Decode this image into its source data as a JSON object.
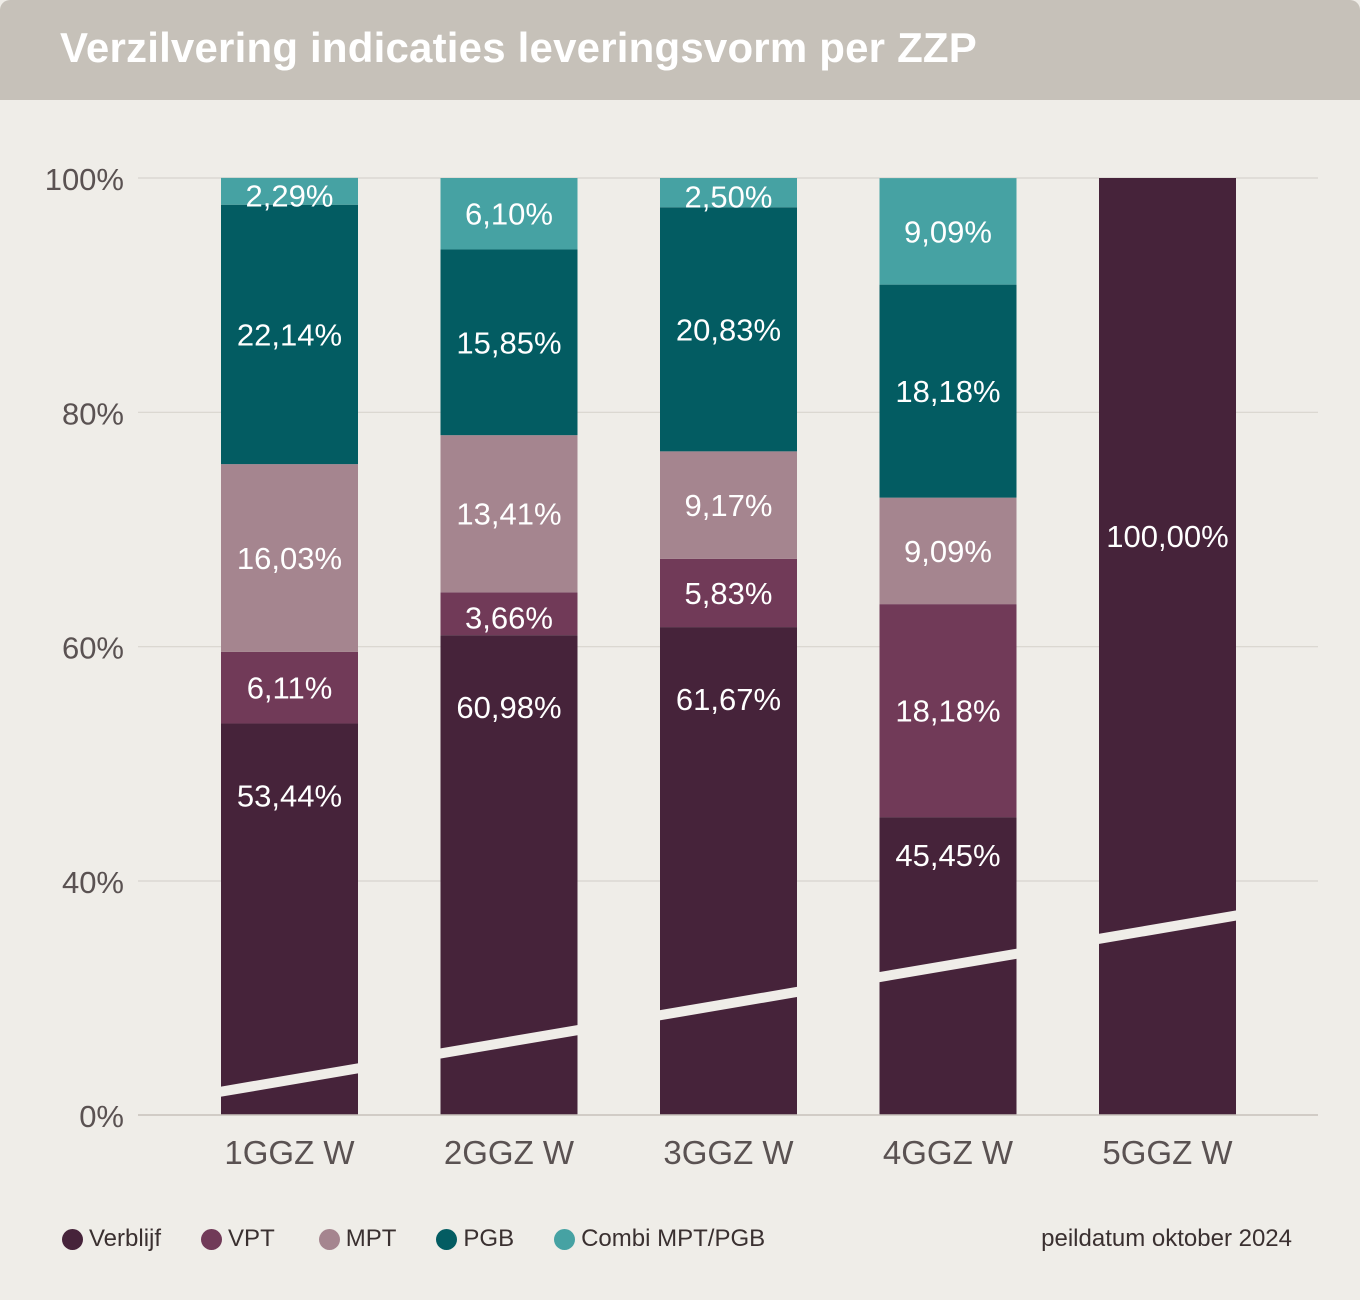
{
  "title": "Verzilvering indicaties leveringsvorm per ZZP",
  "date_note": "peildatum oktober 2024",
  "colors": {
    "Verblijf": "#46233a",
    "VPT": "#713a58",
    "MPT": "#a5858f",
    "PGB": "#035c62",
    "Combi MPT/PGB": "#46a2a3",
    "background": "#efede8",
    "header": "#c6c1b9"
  },
  "chart_data": {
    "type": "bar",
    "stacked": true,
    "title": "Verzilvering indicaties leveringsvorm per ZZP",
    "categories": [
      "1GGZ W",
      "2GGZ W",
      "3GGZ W",
      "4GGZ W",
      "5GGZ W"
    ],
    "yticks": [
      "0%",
      "40%",
      "60%",
      "80%",
      "100%"
    ],
    "ylim": [
      0,
      100
    ],
    "axis_break": true,
    "grid": true,
    "legend_position": "bottom-left",
    "series": [
      {
        "name": "Verblijf",
        "values": [
          53.44,
          60.98,
          61.67,
          45.45,
          100.0
        ],
        "labels": [
          "53,44%",
          "60,98%",
          "61,67%",
          "45,45%",
          "100,00%"
        ]
      },
      {
        "name": "VPT",
        "values": [
          6.11,
          3.66,
          5.83,
          18.18,
          0
        ],
        "labels": [
          "6,11%",
          "3,66%",
          "5,83%",
          "18,18%",
          ""
        ]
      },
      {
        "name": "MPT",
        "values": [
          16.03,
          13.41,
          9.17,
          9.09,
          0
        ],
        "labels": [
          "16,03%",
          "13,41%",
          "9,17%",
          "9,09%",
          ""
        ]
      },
      {
        "name": "PGB",
        "values": [
          22.14,
          15.85,
          20.83,
          18.18,
          0
        ],
        "labels": [
          "22,14%",
          "15,85%",
          "20,83%",
          "18,18%",
          ""
        ]
      },
      {
        "name": "Combi MPT/PGB",
        "values": [
          2.29,
          6.1,
          2.5,
          9.09,
          0
        ],
        "labels": [
          "2,29%",
          "6,10%",
          "2,50%",
          "9,09%",
          ""
        ]
      }
    ]
  }
}
